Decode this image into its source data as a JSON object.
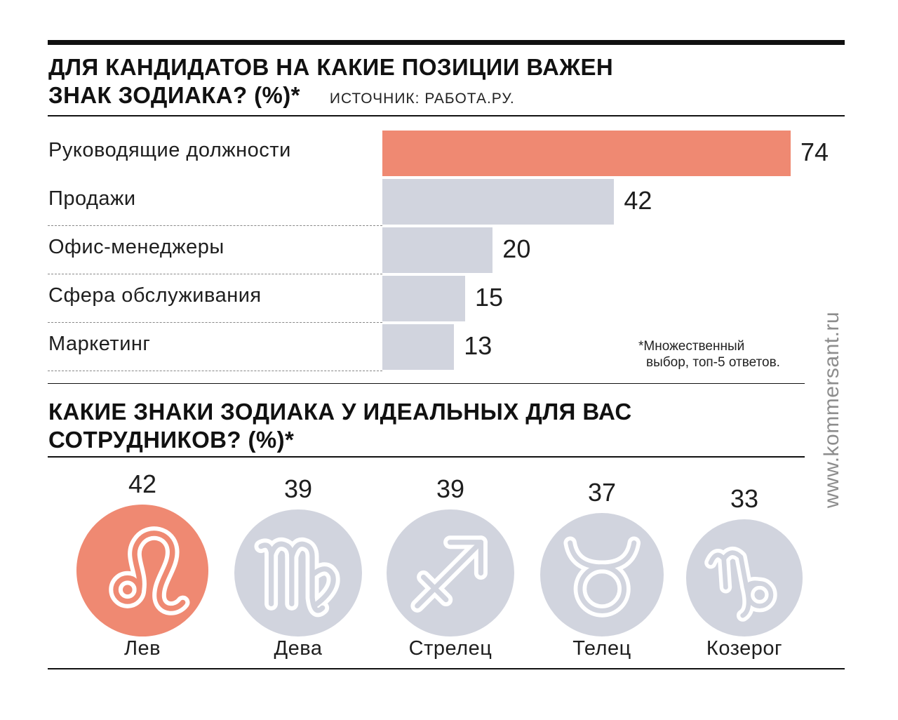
{
  "chart_data": [
    {
      "type": "bar",
      "orientation": "horizontal",
      "title": "ДЛЯ КАНДИДАТОВ НА КАКИЕ ПОЗИЦИИ ВАЖЕН ЗНАК ЗОДИАКА? (%)*",
      "source": "ИСТОЧНИК: РАБОТА.РУ.",
      "categories": [
        "Руководящие должности",
        "Продажи",
        "Офис-менеджеры",
        "Сфера обслуживания",
        "Маркетинг"
      ],
      "values": [
        74,
        42,
        20,
        15,
        13
      ],
      "highlight_index": 0,
      "note_line1": "*Множественный",
      "note_line2": "выбор, топ-5 ответов."
    },
    {
      "type": "bar",
      "title": "КАКИЕ ЗНАКИ ЗОДИАКА У ИДЕАЛЬНЫХ ДЛЯ ВАС СОТРУДНИКОВ? (%)*",
      "categories": [
        "Лев",
        "Дева",
        "Стрелец",
        "Телец",
        "Козерог"
      ],
      "values": [
        42,
        39,
        39,
        37,
        33
      ],
      "icons": [
        "leo-icon",
        "virgo-icon",
        "sagittarius-icon",
        "taurus-icon",
        "capricorn-icon"
      ],
      "highlight_index": 0
    }
  ],
  "colors": {
    "highlight": "#ef8972",
    "muted": "#d1d4de",
    "text": "#1e1e1e",
    "rule": "#111111"
  },
  "watermark": "www.kommersant.ru"
}
